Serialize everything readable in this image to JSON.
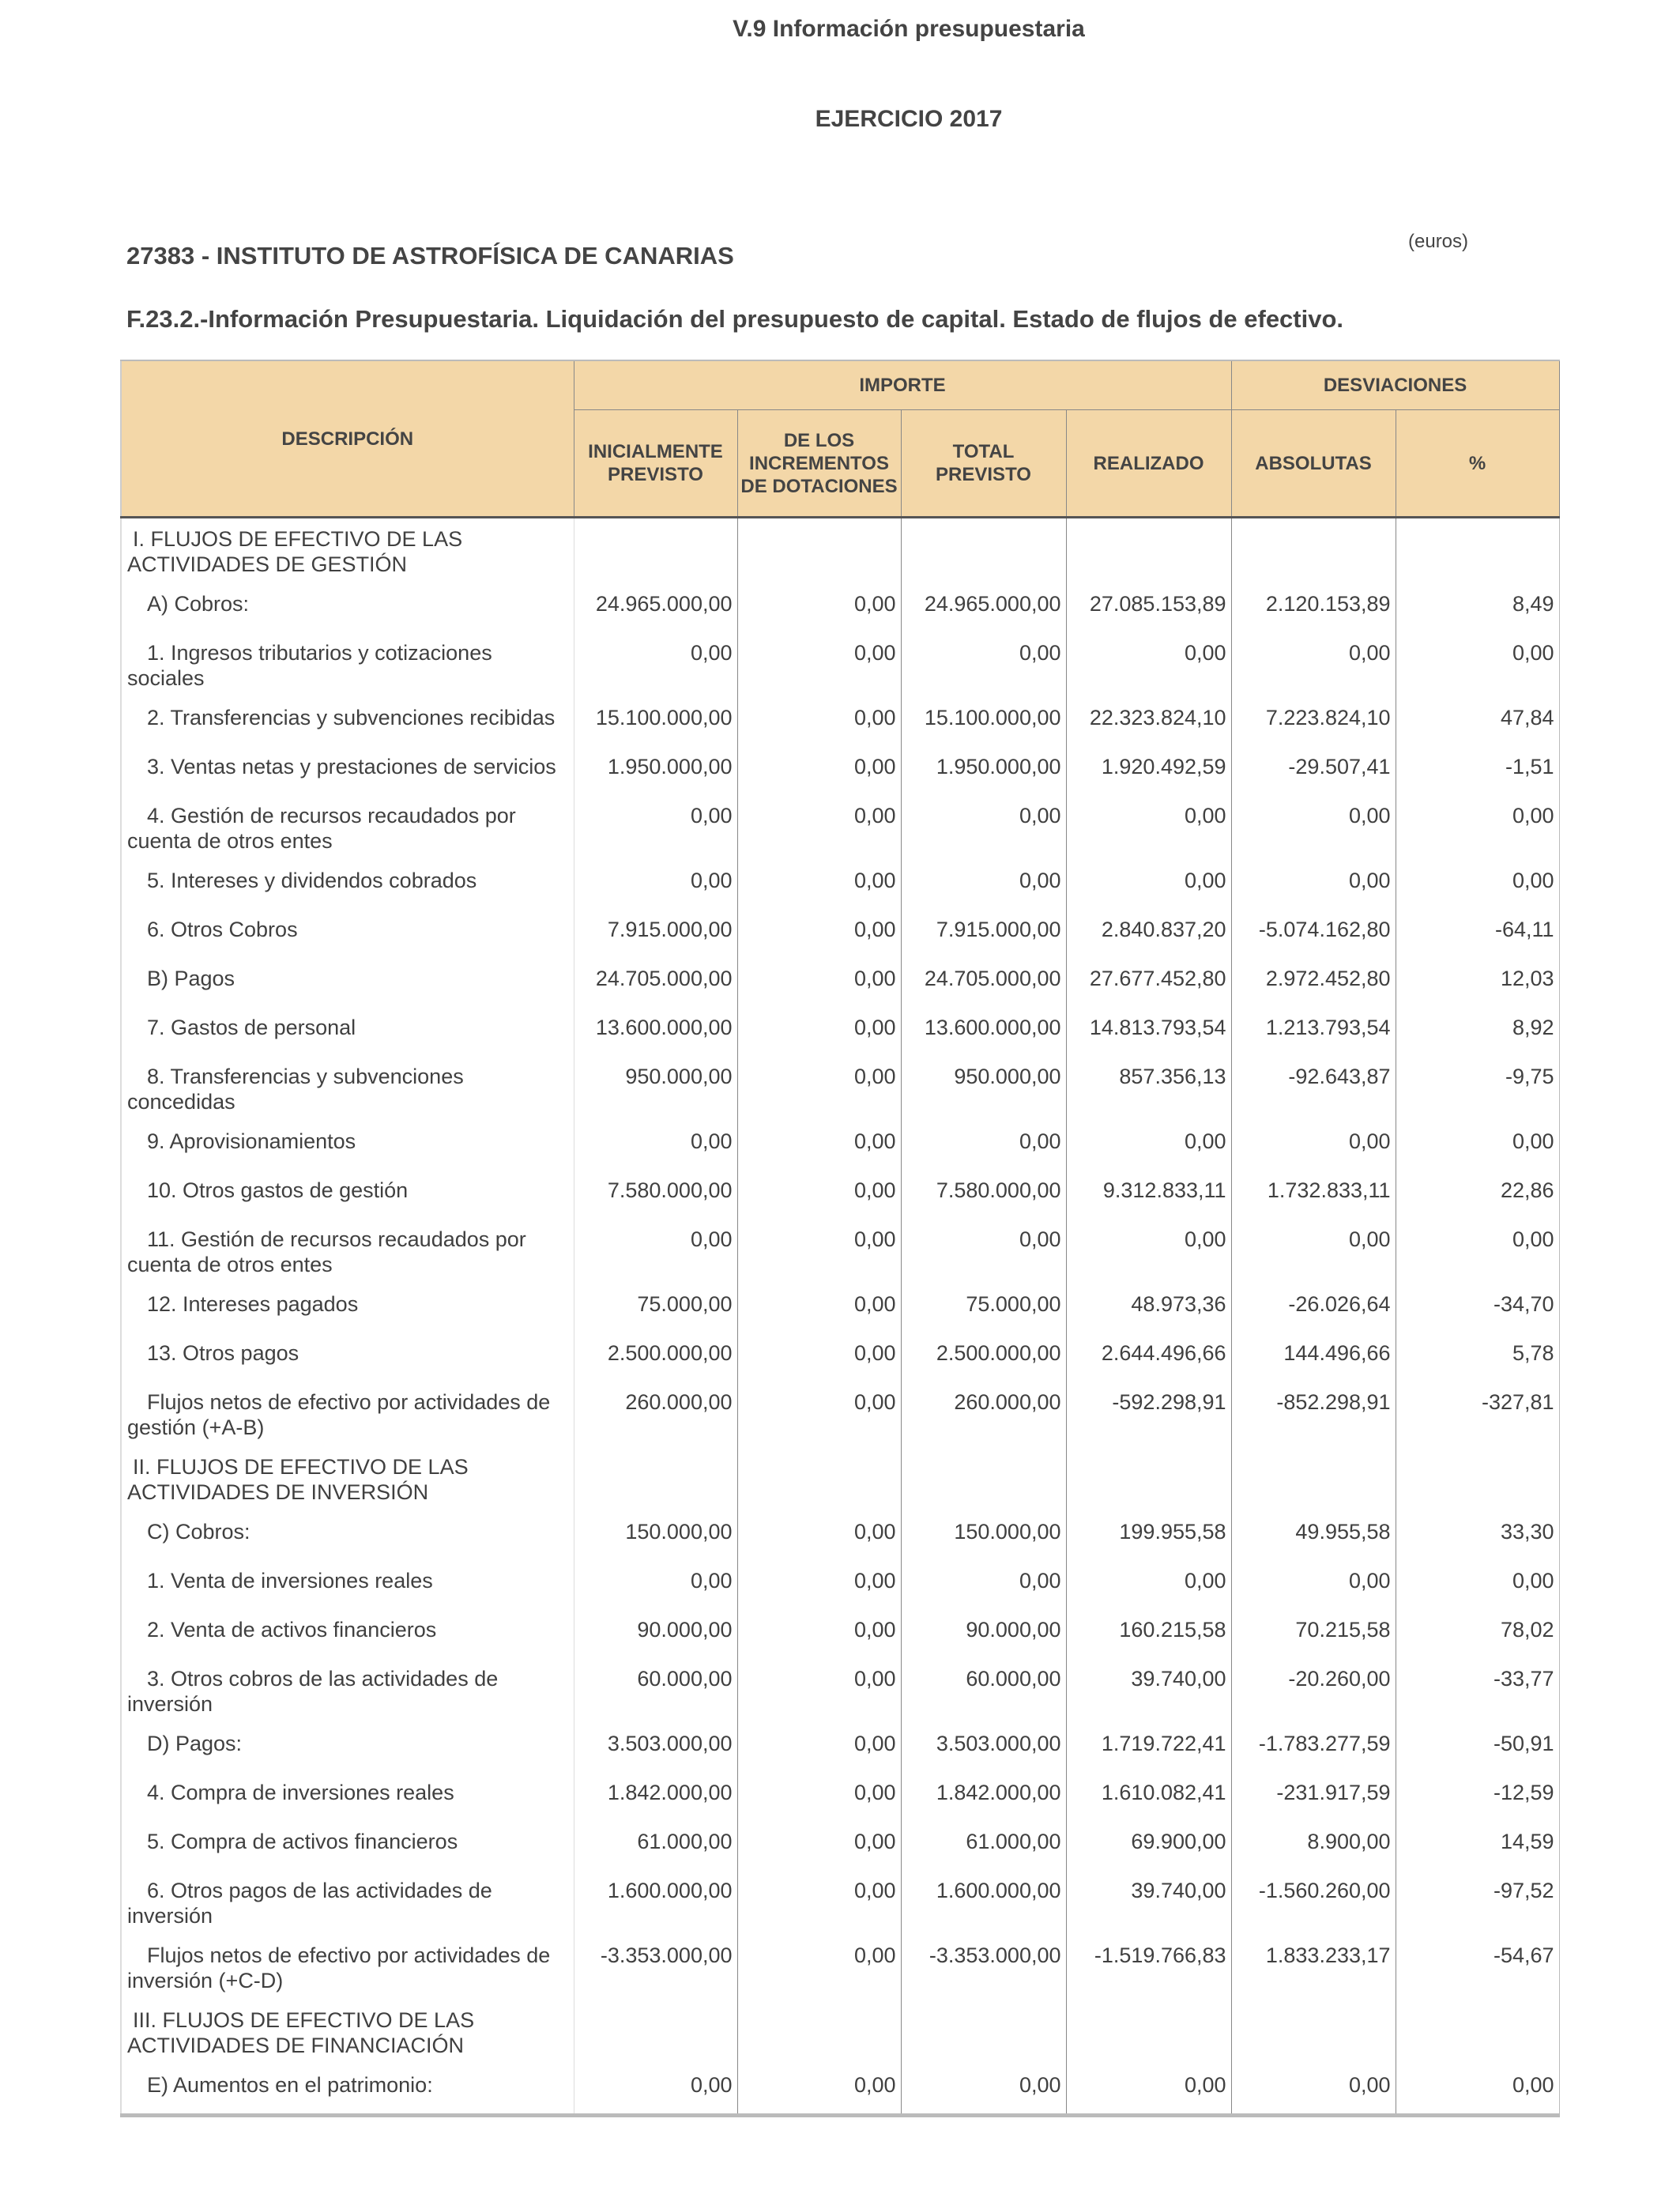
{
  "header": {
    "title": "V.9 Información presupuestaria",
    "year": "EJERCICIO 2017",
    "institution": "27383 - INSTITUTO DE ASTROFÍSICA DE CANARIAS",
    "units": "(euros)",
    "subtitle": "F.23.2.-Información Presupuestaria. Liquidación del presupuesto de capital. Estado de flujos de efectivo."
  },
  "table": {
    "group_headers": {
      "descripcion": "DESCRIPCIÓN",
      "importe": "IMPORTE",
      "desviaciones": "DESVIACIONES"
    },
    "columns": [
      "INICIALMENTE PREVISTO",
      "DE LOS INCREMENTOS DE DOTACIONES",
      "TOTAL PREVISTO",
      "REALIZADO",
      "ABSOLUTAS",
      "%"
    ],
    "rows": [
      {
        "type": "sec",
        "desc": "I. FLUJOS DE EFECTIVO DE LAS ACTIVIDADES DE GESTIÓN",
        "values": [
          "",
          "",
          "",
          "",
          "",
          ""
        ]
      },
      {
        "type": "item",
        "desc": "A)  Cobros:",
        "values": [
          "24.965.000,00",
          "0,00",
          "24.965.000,00",
          "27.085.153,89",
          "2.120.153,89",
          "8,49"
        ]
      },
      {
        "type": "item",
        "desc": "1. Ingresos tributarios y cotizaciones sociales",
        "values": [
          "0,00",
          "0,00",
          "0,00",
          "0,00",
          "0,00",
          "0,00"
        ]
      },
      {
        "type": "item",
        "desc": "2. Transferencias y subvenciones recibidas",
        "values": [
          "15.100.000,00",
          "0,00",
          "15.100.000,00",
          "22.323.824,10",
          "7.223.824,10",
          "47,84"
        ]
      },
      {
        "type": "item",
        "desc": "3. Ventas netas y prestaciones de servicios",
        "values": [
          "1.950.000,00",
          "0,00",
          "1.950.000,00",
          "1.920.492,59",
          "-29.507,41",
          "-1,51"
        ]
      },
      {
        "type": "item",
        "desc": "4. Gestión de recursos recaudados por cuenta de otros entes",
        "values": [
          "0,00",
          "0,00",
          "0,00",
          "0,00",
          "0,00",
          "0,00"
        ]
      },
      {
        "type": "item",
        "desc": "5. Intereses y dividendos cobrados",
        "values": [
          "0,00",
          "0,00",
          "0,00",
          "0,00",
          "0,00",
          "0,00"
        ]
      },
      {
        "type": "item",
        "desc": "6. Otros Cobros",
        "values": [
          "7.915.000,00",
          "0,00",
          "7.915.000,00",
          "2.840.837,20",
          "-5.074.162,80",
          "-64,11"
        ]
      },
      {
        "type": "item",
        "desc": "B)  Pagos",
        "values": [
          "24.705.000,00",
          "0,00",
          "24.705.000,00",
          "27.677.452,80",
          "2.972.452,80",
          "12,03"
        ]
      },
      {
        "type": "item",
        "desc": "7. Gastos de personal",
        "values": [
          "13.600.000,00",
          "0,00",
          "13.600.000,00",
          "14.813.793,54",
          "1.213.793,54",
          "8,92"
        ]
      },
      {
        "type": "item",
        "desc": "8. Transferencias y subvenciones concedidas",
        "values": [
          "950.000,00",
          "0,00",
          "950.000,00",
          "857.356,13",
          "-92.643,87",
          "-9,75"
        ]
      },
      {
        "type": "item",
        "desc": "9. Aprovisionamientos",
        "values": [
          "0,00",
          "0,00",
          "0,00",
          "0,00",
          "0,00",
          "0,00"
        ]
      },
      {
        "type": "item",
        "desc": "10. Otros gastos de gestión",
        "values": [
          "7.580.000,00",
          "0,00",
          "7.580.000,00",
          "9.312.833,11",
          "1.732.833,11",
          "22,86"
        ]
      },
      {
        "type": "item",
        "desc": "11. Gestión de recursos recaudados por cuenta de otros entes",
        "values": [
          "0,00",
          "0,00",
          "0,00",
          "0,00",
          "0,00",
          "0,00"
        ]
      },
      {
        "type": "item",
        "desc": "12. Intereses pagados",
        "values": [
          "75.000,00",
          "0,00",
          "75.000,00",
          "48.973,36",
          "-26.026,64",
          "-34,70"
        ]
      },
      {
        "type": "item",
        "desc": "13. Otros pagos",
        "values": [
          "2.500.000,00",
          "0,00",
          "2.500.000,00",
          "2.644.496,66",
          "144.496,66",
          "5,78"
        ]
      },
      {
        "type": "item",
        "desc": "Flujos netos de efectivo por actividades de gestión (+A-B)",
        "values": [
          "260.000,00",
          "0,00",
          "260.000,00",
          "-592.298,91",
          "-852.298,91",
          "-327,81"
        ]
      },
      {
        "type": "sec",
        "desc": "II. FLUJOS DE EFECTIVO DE LAS ACTIVIDADES DE INVERSIÓN",
        "values": [
          "",
          "",
          "",
          "",
          "",
          ""
        ]
      },
      {
        "type": "item",
        "desc": "C) Cobros:",
        "values": [
          "150.000,00",
          "0,00",
          "150.000,00",
          "199.955,58",
          "49.955,58",
          "33,30"
        ]
      },
      {
        "type": "item",
        "desc": "1. Venta de inversiones reales",
        "values": [
          "0,00",
          "0,00",
          "0,00",
          "0,00",
          "0,00",
          "0,00"
        ]
      },
      {
        "type": "item",
        "desc": "2. Venta de activos financieros",
        "values": [
          "90.000,00",
          "0,00",
          "90.000,00",
          "160.215,58",
          "70.215,58",
          "78,02"
        ]
      },
      {
        "type": "item",
        "desc": "3. Otros cobros de las actividades de inversión",
        "values": [
          "60.000,00",
          "0,00",
          "60.000,00",
          "39.740,00",
          "-20.260,00",
          "-33,77"
        ]
      },
      {
        "type": "item",
        "desc": "D) Pagos:",
        "values": [
          "3.503.000,00",
          "0,00",
          "3.503.000,00",
          "1.719.722,41",
          "-1.783.277,59",
          "-50,91"
        ]
      },
      {
        "type": "item",
        "desc": "4. Compra de inversiones reales",
        "values": [
          "1.842.000,00",
          "0,00",
          "1.842.000,00",
          "1.610.082,41",
          "-231.917,59",
          "-12,59"
        ]
      },
      {
        "type": "item",
        "desc": "5. Compra de activos financieros",
        "values": [
          "61.000,00",
          "0,00",
          "61.000,00",
          "69.900,00",
          "8.900,00",
          "14,59"
        ]
      },
      {
        "type": "item",
        "desc": "6. Otros pagos de las actividades de inversión",
        "values": [
          "1.600.000,00",
          "0,00",
          "1.600.000,00",
          "39.740,00",
          "-1.560.260,00",
          "-97,52"
        ]
      },
      {
        "type": "item",
        "desc": "Flujos netos de efectivo por actividades de inversión (+C-D)",
        "values": [
          "-3.353.000,00",
          "0,00",
          "-3.353.000,00",
          "-1.519.766,83",
          "1.833.233,17",
          "-54,67"
        ]
      },
      {
        "type": "sec",
        "desc": "III. FLUJOS DE EFECTIVO DE LAS ACTIVIDADES DE FINANCIACIÓN",
        "values": [
          "",
          "",
          "",
          "",
          "",
          ""
        ]
      },
      {
        "type": "item",
        "desc": "E) Aumentos en el patrimonio:",
        "values": [
          "0,00",
          "0,00",
          "0,00",
          "0,00",
          "0,00",
          "0,00"
        ]
      }
    ]
  }
}
